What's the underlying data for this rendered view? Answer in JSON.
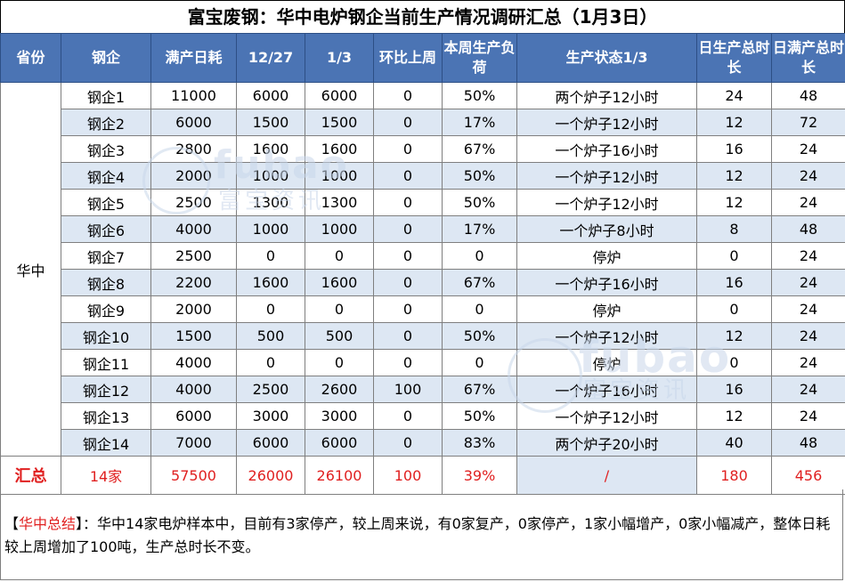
{
  "title": "富宝废钢：华中电炉钢企当前生产情况调研汇总（1月3日）",
  "headers": [
    "省份",
    "钢企",
    "满产日耗",
    "12/27",
    "1/3",
    "环比上周",
    "本周生产负荷",
    "生产状态1/3",
    "日生产总时长",
    "日满产总时长"
  ],
  "province": "华中",
  "rows": [
    {
      "name": "钢企1",
      "full": "11000",
      "d1227": "6000",
      "d13": "6000",
      "wow": "0",
      "load": "50%",
      "status": "两个炉子12小时",
      "hours": "24",
      "full_hours": "48"
    },
    {
      "name": "钢企2",
      "full": "6000",
      "d1227": "1500",
      "d13": "1500",
      "wow": "0",
      "load": "17%",
      "status": "一个炉子12小时",
      "hours": "12",
      "full_hours": "72"
    },
    {
      "name": "钢企3",
      "full": "2800",
      "d1227": "1600",
      "d13": "1600",
      "wow": "0",
      "load": "67%",
      "status": "一个炉子16小时",
      "hours": "16",
      "full_hours": "24"
    },
    {
      "name": "钢企4",
      "full": "2000",
      "d1227": "1000",
      "d13": "1000",
      "wow": "0",
      "load": "50%",
      "status": "一个炉子12小时",
      "hours": "12",
      "full_hours": "24"
    },
    {
      "name": "钢企5",
      "full": "2500",
      "d1227": "1300",
      "d13": "1300",
      "wow": "0",
      "load": "50%",
      "status": "一个炉子12小时",
      "hours": "12",
      "full_hours": "24"
    },
    {
      "name": "钢企6",
      "full": "4000",
      "d1227": "1000",
      "d13": "1000",
      "wow": "0",
      "load": "17%",
      "status": "一个炉子8小时",
      "hours": "8",
      "full_hours": "48"
    },
    {
      "name": "钢企7",
      "full": "2500",
      "d1227": "0",
      "d13": "0",
      "wow": "0",
      "load": "0",
      "status": "停炉",
      "hours": "0",
      "full_hours": "24"
    },
    {
      "name": "钢企8",
      "full": "2200",
      "d1227": "1600",
      "d13": "1600",
      "wow": "0",
      "load": "67%",
      "status": "一个炉子16小时",
      "hours": "16",
      "full_hours": "24"
    },
    {
      "name": "钢企9",
      "full": "2000",
      "d1227": "0",
      "d13": "0",
      "wow": "0",
      "load": "0",
      "status": "停炉",
      "hours": "0",
      "full_hours": "24"
    },
    {
      "name": "钢企10",
      "full": "1500",
      "d1227": "500",
      "d13": "500",
      "wow": "0",
      "load": "50%",
      "status": "一个炉子12小时",
      "hours": "12",
      "full_hours": "24"
    },
    {
      "name": "钢企11",
      "full": "4000",
      "d1227": "0",
      "d13": "0",
      "wow": "0",
      "load": "0",
      "status": "停炉",
      "hours": "0",
      "full_hours": "24"
    },
    {
      "name": "钢企12",
      "full": "4000",
      "d1227": "2500",
      "d13": "2600",
      "wow": "100",
      "load": "67%",
      "status": "一个炉子16小时",
      "hours": "16",
      "full_hours": "24"
    },
    {
      "name": "钢企13",
      "full": "6000",
      "d1227": "3000",
      "d13": "3000",
      "wow": "0",
      "load": "50%",
      "status": "一个炉子12小时",
      "hours": "12",
      "full_hours": "24"
    },
    {
      "name": "钢企14",
      "full": "7000",
      "d1227": "6000",
      "d13": "6000",
      "wow": "0",
      "load": "83%",
      "status": "两个炉子20小时",
      "hours": "40",
      "full_hours": "48"
    }
  ],
  "summary": {
    "label": "汇总",
    "count": "14家",
    "full": "57500",
    "d1227": "26000",
    "d13": "26100",
    "wow": "100",
    "load": "39%",
    "status": "/",
    "hours": "180",
    "full_hours": "456"
  },
  "note": {
    "label": "【华中总结】",
    "label_open": "【",
    "label_text": "华中总结",
    "label_close": "】",
    "text": "：华中14家电炉样本中，目前有3家停产，较上周来说，有0家复产，0家停产，1家小幅增产，0家小幅减产，整体日耗较上周增加了100吨，生产总时长不变。"
  },
  "watermark": {
    "brand": "fubao",
    "brand_cn": "富宝资讯"
  },
  "colors": {
    "header_bg": "#4b74b4",
    "alt_row": "#dde7f3",
    "highlight": "#e02020"
  }
}
